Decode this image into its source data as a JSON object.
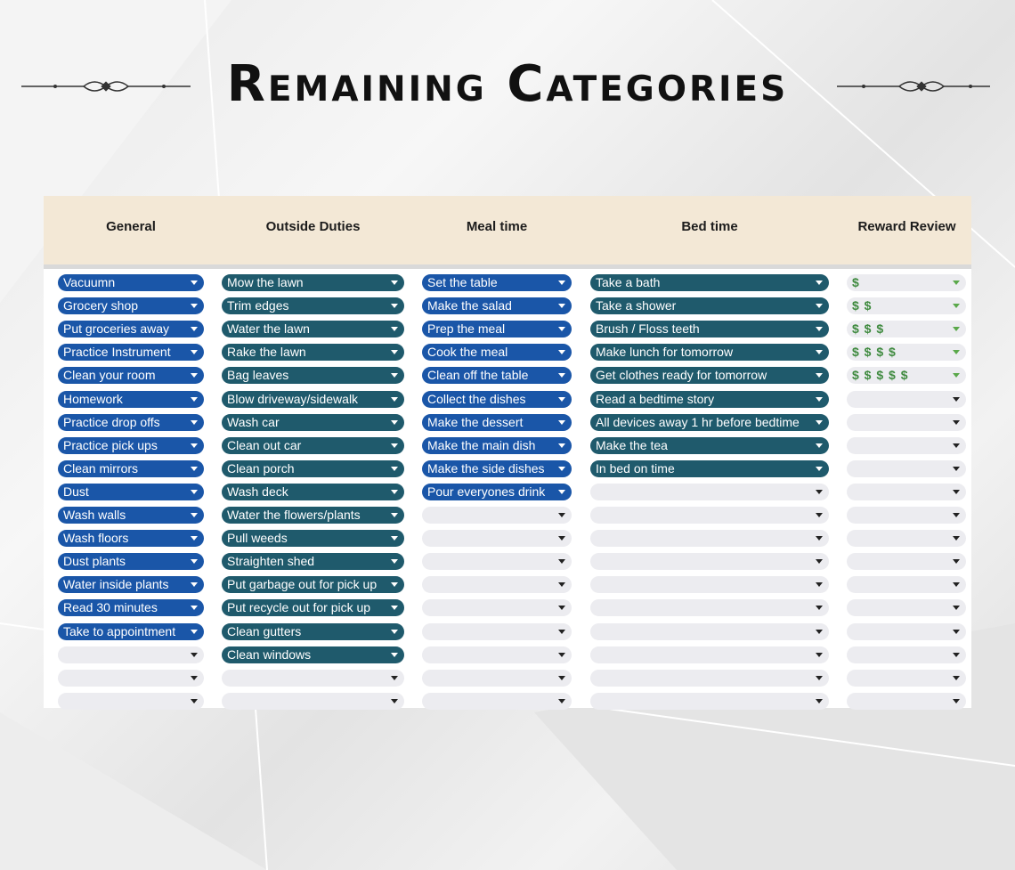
{
  "page": {
    "title": "Remaining Categories"
  },
  "colors": {
    "blue_chip": "#1a56a8",
    "teal_chip": "#1f5a6c",
    "empty_chip": "#ececf0",
    "header_bg": "#f3e8d6",
    "dollar_green": "#3f8a3f"
  },
  "icons": {
    "title_ornament": "scroll-divider-icon",
    "dropdown": "caret-down-icon"
  },
  "columns": [
    {
      "name": "General",
      "style": "blue",
      "empty_rows": 3,
      "items": [
        "Vacuumn",
        "Grocery shop",
        "Put groceries away",
        "Practice Instrument",
        "Clean your room",
        "Homework",
        "Practice drop offs",
        "Practice pick ups",
        "Clean mirrors",
        "Dust",
        "Wash walls",
        "Wash floors",
        "Dust plants",
        "Water inside plants",
        "Read 30 minutes",
        "Take to appointment"
      ]
    },
    {
      "name": "Outside Duties",
      "style": "teal",
      "empty_rows": 2,
      "items": [
        "Mow the lawn",
        "Trim edges",
        "Water the lawn",
        "Rake the lawn",
        "Bag leaves",
        "Blow driveway/sidewalk",
        "Wash car",
        "Clean out car",
        "Clean porch",
        "Wash deck",
        "Water the flowers/plants",
        "Pull weeds",
        "Straighten shed",
        "Put garbage out for pick up",
        "Put recycle out for pick up",
        "Clean gutters",
        "Clean windows"
      ]
    },
    {
      "name": "Meal time",
      "style": "blue",
      "empty_rows": 9,
      "items": [
        "Set the table",
        "Make the salad",
        "Prep the meal",
        "Cook the meal",
        "Clean off the table",
        "Collect the dishes",
        "Make the dessert",
        "Make the main dish",
        "Make the side dishes",
        "Pour everyones drink"
      ]
    },
    {
      "name": "Bed time",
      "style": "teal",
      "empty_rows": 10,
      "items": [
        "Take a bath",
        "Take a shower",
        "Brush / Floss teeth",
        "Make lunch for tomorrow",
        "Get clothes ready for tomorrow",
        "Read a bedtime story",
        "All devices away 1 hr before bedtime",
        "Make the tea",
        "In bed on time"
      ]
    },
    {
      "name": "Reward Review",
      "style": "reward",
      "empty_rows": 14,
      "items": [
        "$",
        "$ $",
        "$ $ $",
        "$ $ $ $",
        "$ $ $ $ $"
      ]
    }
  ]
}
